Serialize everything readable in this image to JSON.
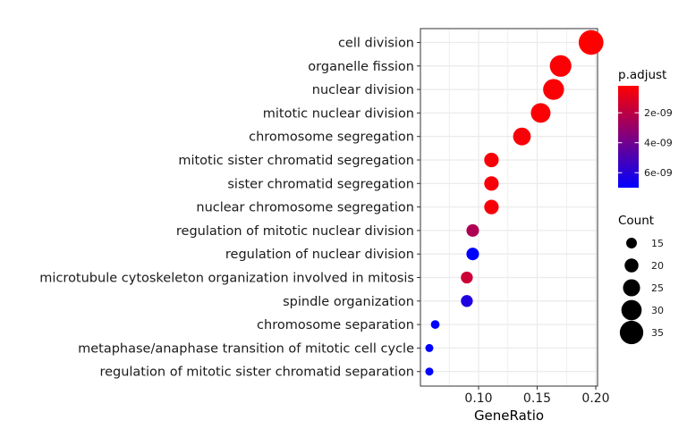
{
  "chart_data": {
    "type": "scatter",
    "xlabel": "GeneRatio",
    "xlim": [
      0.05,
      0.2
    ],
    "x_ticks": [
      0.1,
      0.15,
      0.2
    ],
    "x_tick_labels": [
      "0.10",
      "0.15",
      "0.20"
    ],
    "grid": true,
    "categories": [
      "cell division",
      "organelle fission",
      "nuclear division",
      "mitotic nuclear division",
      "chromosome segregation",
      "mitotic sister chromatid segregation",
      "sister chromatid segregation",
      "nuclear chromosome segregation",
      "regulation of mitotic nuclear division",
      "regulation of nuclear division",
      "microtubule cytoskeleton organization involved in mitosis",
      "spindle organization",
      "chromosome separation",
      "metaphase/anaphase transition of mitotic cell cycle",
      "regulation of mitotic sister chromatid separation"
    ],
    "points": [
      {
        "term": "cell division",
        "gene_ratio": 0.196,
        "count": 37,
        "p_adjust": 2e-10
      },
      {
        "term": "organelle fission",
        "gene_ratio": 0.17,
        "count": 32,
        "p_adjust": 3e-10
      },
      {
        "term": "nuclear division",
        "gene_ratio": 0.164,
        "count": 31,
        "p_adjust": 3e-10
      },
      {
        "term": "mitotic nuclear division",
        "gene_ratio": 0.153,
        "count": 29,
        "p_adjust": 3e-10
      },
      {
        "term": "chromosome segregation",
        "gene_ratio": 0.137,
        "count": 26,
        "p_adjust": 4e-10
      },
      {
        "term": "mitotic sister chromatid segregation",
        "gene_ratio": 0.111,
        "count": 21,
        "p_adjust": 4e-10
      },
      {
        "term": "sister chromatid segregation",
        "gene_ratio": 0.111,
        "count": 21,
        "p_adjust": 4e-10
      },
      {
        "term": "nuclear chromosome segregation",
        "gene_ratio": 0.111,
        "count": 21,
        "p_adjust": 4e-10
      },
      {
        "term": "regulation of mitotic nuclear division",
        "gene_ratio": 0.095,
        "count": 18,
        "p_adjust": 2.4e-09
      },
      {
        "term": "regulation of nuclear division",
        "gene_ratio": 0.095,
        "count": 18,
        "p_adjust": 7e-09
      },
      {
        "term": "microtubule cytoskeleton organization involved in mitosis",
        "gene_ratio": 0.09,
        "count": 17,
        "p_adjust": 1.6e-09
      },
      {
        "term": "spindle organization",
        "gene_ratio": 0.09,
        "count": 17,
        "p_adjust": 6.2e-09
      },
      {
        "term": "chromosome separation",
        "gene_ratio": 0.063,
        "count": 12,
        "p_adjust": 7e-09
      },
      {
        "term": "metaphase/anaphase transition of mitotic cell cycle",
        "gene_ratio": 0.058,
        "count": 11,
        "p_adjust": 7e-09
      },
      {
        "term": "regulation of mitotic sister chromatid separation",
        "gene_ratio": 0.058,
        "count": 11,
        "p_adjust": 7e-09
      }
    ],
    "color_legend": {
      "title": "p.adjust",
      "range": [
        2e-10,
        7e-09
      ],
      "ticks": [
        2e-09,
        4e-09,
        6e-09
      ],
      "tick_labels": [
        "2e-09",
        "4e-09",
        "6e-09"
      ],
      "low_color": "#ff0000",
      "high_color": "#0000ff"
    },
    "size_legend": {
      "title": "Count",
      "values": [
        15,
        20,
        25,
        30,
        35
      ],
      "labels": [
        "15",
        "20",
        "25",
        "30",
        "35"
      ]
    }
  }
}
